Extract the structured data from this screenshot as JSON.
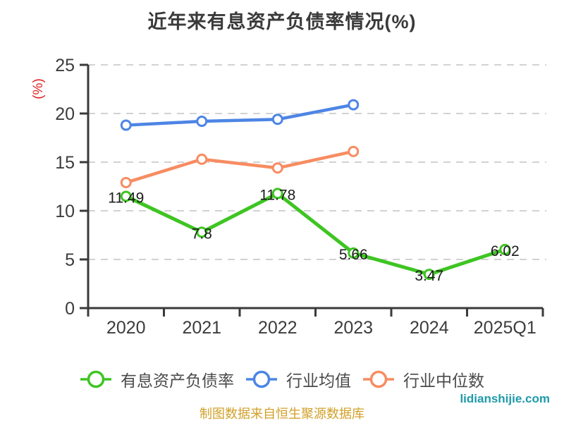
{
  "title": "近年来有息资产负债率情况(%)",
  "footer": {
    "source_note": "制图数据来自恒生聚源数据库",
    "watermark": "lidianshijie.com"
  },
  "colors": {
    "series_green": "#3ec522",
    "series_blue": "#4d85e5",
    "series_orange": "#f78c61",
    "y_unit_red": "#e02020",
    "axis_line": "#3a3a3a",
    "axis_text": "#3c3c3c",
    "grid_line": "#d2d2d2",
    "data_label": "#1c1c1c",
    "legend_text": "#4a4a4a",
    "source_note_gold": "#d2a02a",
    "watermark_teal": "#1e9aaa",
    "title_gray": "#3a3a3a"
  },
  "chart_data": {
    "type": "line",
    "title": "近年来有息资产负债率情况(%)",
    "categories": [
      "2020",
      "2021",
      "2022",
      "2023",
      "2024",
      "2025Q1"
    ],
    "series": [
      {
        "key": "interest-bearing-debt-ratio",
        "name": "有息资产负债率",
        "color": "#3ec522",
        "values": [
          11.49,
          7.8,
          11.78,
          5.66,
          3.47,
          6.02
        ],
        "show_labels": true
      },
      {
        "key": "industry-mean",
        "name": "行业均值",
        "color": "#4d85e5",
        "values": [
          18.8,
          19.2,
          19.4,
          20.9,
          null,
          null
        ],
        "show_labels": false
      },
      {
        "key": "industry-median",
        "name": "行业中位数",
        "color": "#f78c61",
        "values": [
          12.9,
          15.3,
          14.4,
          16.1,
          null,
          null
        ],
        "show_labels": false
      }
    ],
    "xlabel": "",
    "ylabel": "(%)",
    "ylim": [
      0,
      25
    ],
    "yticks": [
      0,
      5,
      10,
      15,
      20,
      25
    ],
    "grid": "horizontal-dashed",
    "legend_position": "bottom",
    "marker": "open-circle"
  }
}
